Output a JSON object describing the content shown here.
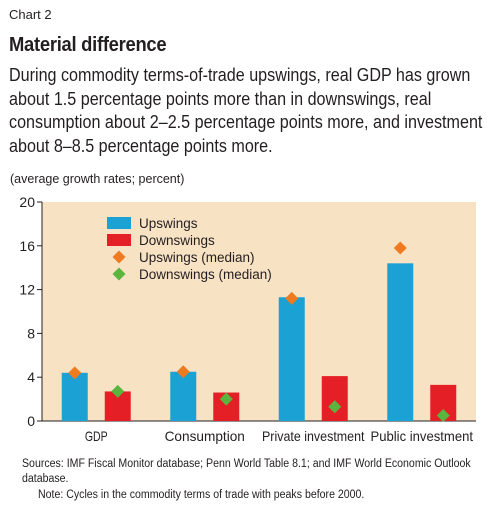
{
  "chart_label": "Chart 2",
  "chart_data": {
    "type": "bar",
    "title": "Material difference",
    "subtitle": "During commodity terms-of-trade upswings, real GDP has grown about 1.5 percentage points more than in downswings, real consumption about 2–2.5 percentage points more, and investment about 8–8.5 percentage points more.",
    "ylabel": "(average growth rates; percent)",
    "ylim": [
      0,
      20
    ],
    "yticks": [
      0,
      4,
      8,
      12,
      16,
      20
    ],
    "categories": [
      "GDP",
      "Consumption",
      "Private investment",
      "Public investment"
    ],
    "series": [
      {
        "name": "Upswings",
        "kind": "bar",
        "color": "#1ba1d4",
        "values": [
          4.4,
          4.5,
          11.3,
          14.4
        ]
      },
      {
        "name": "Downswings",
        "kind": "bar",
        "color": "#e41f26",
        "values": [
          2.7,
          2.6,
          4.1,
          3.3
        ]
      },
      {
        "name": "Upswings (median)",
        "kind": "marker",
        "color": "#ef7b20",
        "values": [
          4.4,
          4.5,
          11.2,
          15.8
        ]
      },
      {
        "name": "Downswings (median)",
        "kind": "marker",
        "color": "#5bb43e",
        "values": [
          2.7,
          2.0,
          1.3,
          0.5
        ]
      }
    ],
    "legend_position": "top-left",
    "grid": false,
    "background_color": "#f8e2c4"
  },
  "sources": "Sources: IMF Fiscal Monitor database; Penn World Table 8.1; and IMF World Economic Outlook database.",
  "note": "Note: Cycles in the commodity terms of trade with peaks before 2000."
}
